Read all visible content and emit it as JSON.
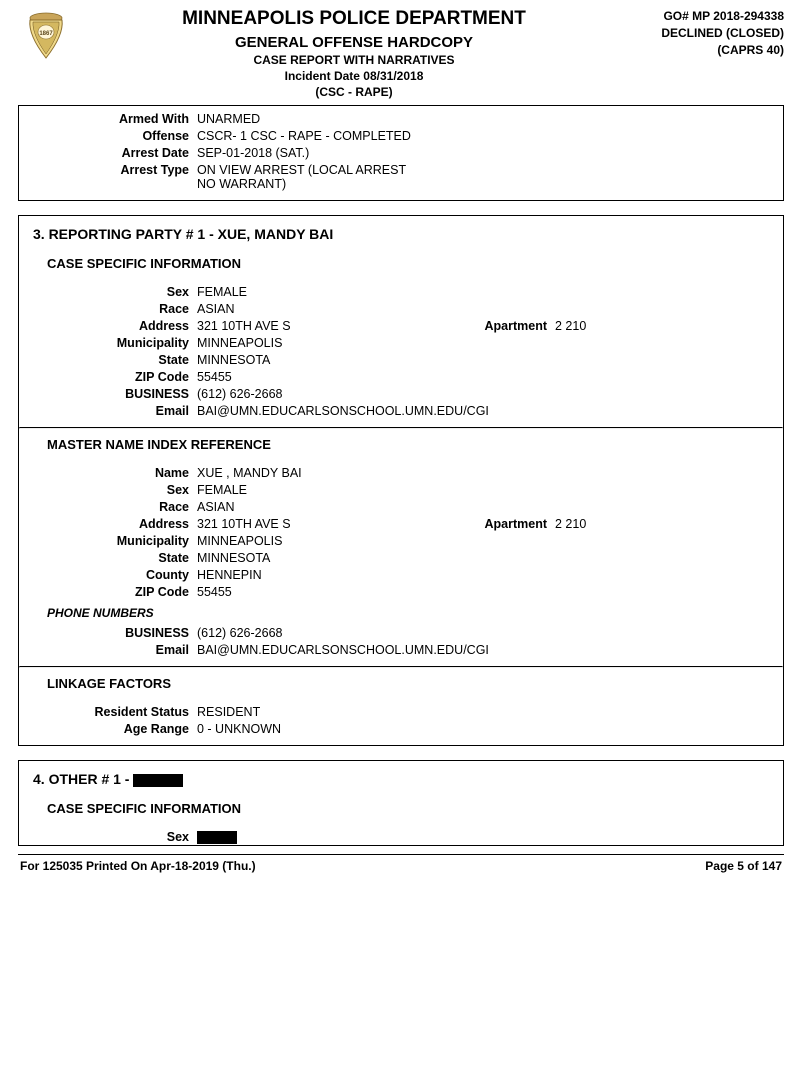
{
  "header": {
    "department": "MINNEAPOLIS POLICE DEPARTMENT",
    "report_type": "GENERAL OFFENSE HARDCOPY",
    "subtitle": "CASE REPORT WITH NARRATIVES",
    "incident_date_label": "Incident Date 08/31/2018",
    "category": "(CSC - RAPE)",
    "go_number": "GO# MP 2018-294338",
    "status": "DECLINED (CLOSED)",
    "system": "(CAPRS 40)"
  },
  "box1": {
    "rows": [
      {
        "label": "Armed With",
        "value": "UNARMED"
      },
      {
        "label": "Offense",
        "value": "CSCR- 1  CSC - RAPE  - COMPLETED"
      },
      {
        "label": "Arrest Date",
        "value": "SEP-01-2018  (SAT.)"
      },
      {
        "label": "Arrest Type",
        "value": "ON VIEW ARREST (LOCAL ARREST NO WARRANT)"
      }
    ]
  },
  "box2": {
    "heading": "3.  REPORTING PARTY # 1 - XUE, MANDY BAI",
    "section1": {
      "title": "CASE SPECIFIC INFORMATION",
      "rows": [
        {
          "label": "Sex",
          "value": "FEMALE"
        },
        {
          "label": "Race",
          "value": "ASIAN"
        },
        {
          "label": "Address",
          "value": "321 10TH AVE S",
          "label2": "Apartment",
          "value2": "2 210"
        },
        {
          "label": "Municipality",
          "value": "MINNEAPOLIS"
        },
        {
          "label": "State",
          "value": "MINNESOTA"
        },
        {
          "label": "ZIP Code",
          "value": "55455"
        },
        {
          "label": "BUSINESS",
          "value": "(612)  626-2668"
        },
        {
          "label": "Email",
          "value": "BAI@UMN.EDUCARLSONSCHOOL.UMN.EDU/CGI"
        }
      ]
    },
    "section2": {
      "title": "MASTER NAME INDEX REFERENCE",
      "rows": [
        {
          "label": "Name",
          "value": "XUE , MANDY  BAI"
        },
        {
          "label": "Sex",
          "value": "FEMALE"
        },
        {
          "label": "Race",
          "value": "ASIAN"
        },
        {
          "label": "Address",
          "value": "321 10TH AVE S",
          "label2": "Apartment",
          "value2": "2 210"
        },
        {
          "label": "Municipality",
          "value": "MINNEAPOLIS"
        },
        {
          "label": "State",
          "value": "MINNESOTA"
        },
        {
          "label": "County",
          "value": "HENNEPIN"
        },
        {
          "label": "ZIP Code",
          "value": "55455"
        }
      ],
      "phone_title": "PHONE NUMBERS",
      "phone_rows": [
        {
          "label": "BUSINESS",
          "value": "(612)  626-2668"
        },
        {
          "label": "Email",
          "value": "BAI@UMN.EDUCARLSONSCHOOL.UMN.EDU/CGI"
        }
      ]
    },
    "section3": {
      "title": "LINKAGE FACTORS",
      "rows": [
        {
          "label": "Resident Status",
          "value": "RESIDENT"
        },
        {
          "label": "Age Range",
          "value": "0 - UNKNOWN"
        }
      ]
    }
  },
  "box3": {
    "heading_prefix": "4.  OTHER # 1 - ",
    "section1_title": "CASE SPECIFIC INFORMATION",
    "sex_label": "Sex"
  },
  "footer": {
    "left": "For 125035    Printed On Apr-18-2019  (Thu.)",
    "right": "Page 5 of 147"
  },
  "redaction_widths": {
    "heading": 50,
    "sex": 40
  }
}
